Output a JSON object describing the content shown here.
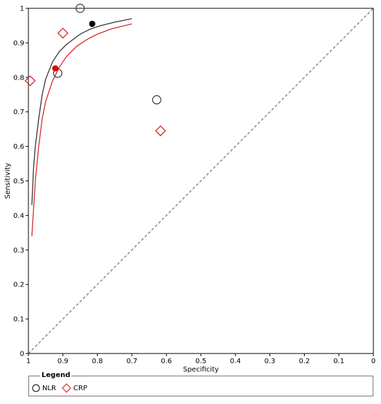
{
  "chart_data": {
    "type": "scatter",
    "xlabel": "Specificity",
    "ylabel": "Sensitivity",
    "xlim": [
      1,
      0
    ],
    "ylim": [
      0,
      1
    ],
    "x_ticks": [
      "1",
      "0.9",
      "0.8",
      "0.7",
      "0.6",
      "0.5",
      "0.4",
      "0.3",
      "0.2",
      "0.1",
      "0"
    ],
    "y_ticks": [
      "0",
      "0.1",
      "0.2",
      "0.3",
      "0.4",
      "0.5",
      "0.6",
      "0.7",
      "0.8",
      "0.9",
      "1"
    ],
    "reference_line": "diagonal",
    "series": [
      {
        "name": "NLR",
        "marker": "circle",
        "color": "#333333",
        "points": [
          {
            "specificity": 0.85,
            "sensitivity": 1.0
          },
          {
            "specificity": 0.915,
            "sensitivity": 0.812
          },
          {
            "specificity": 0.628,
            "sensitivity": 0.735
          }
        ],
        "summary_point": {
          "specificity": 0.815,
          "sensitivity": 0.955
        },
        "curve": [
          {
            "specificity": 0.99,
            "sensitivity": 0.43
          },
          {
            "specificity": 0.985,
            "sensitivity": 0.54
          },
          {
            "specificity": 0.98,
            "sensitivity": 0.6
          },
          {
            "specificity": 0.97,
            "sensitivity": 0.68
          },
          {
            "specificity": 0.96,
            "sensitivity": 0.75
          },
          {
            "specificity": 0.95,
            "sensitivity": 0.795
          },
          {
            "specificity": 0.93,
            "sensitivity": 0.845
          },
          {
            "specificity": 0.91,
            "sensitivity": 0.875
          },
          {
            "specificity": 0.89,
            "sensitivity": 0.895
          },
          {
            "specificity": 0.87,
            "sensitivity": 0.91
          },
          {
            "specificity": 0.85,
            "sensitivity": 0.925
          },
          {
            "specificity": 0.82,
            "sensitivity": 0.94
          },
          {
            "specificity": 0.79,
            "sensitivity": 0.95
          },
          {
            "specificity": 0.75,
            "sensitivity": 0.96
          },
          {
            "specificity": 0.7,
            "sensitivity": 0.97
          }
        ]
      },
      {
        "name": "CRP",
        "marker": "diamond",
        "color": "#d62728",
        "points": [
          {
            "specificity": 0.9,
            "sensitivity": 0.928
          },
          {
            "specificity": 0.995,
            "sensitivity": 0.79
          },
          {
            "specificity": 0.617,
            "sensitivity": 0.645
          }
        ],
        "summary_point": {
          "specificity": 0.922,
          "sensitivity": 0.826
        },
        "curve": [
          {
            "specificity": 0.99,
            "sensitivity": 0.34
          },
          {
            "specificity": 0.985,
            "sensitivity": 0.42
          },
          {
            "specificity": 0.98,
            "sensitivity": 0.5
          },
          {
            "specificity": 0.97,
            "sensitivity": 0.6
          },
          {
            "specificity": 0.96,
            "sensitivity": 0.68
          },
          {
            "specificity": 0.95,
            "sensitivity": 0.73
          },
          {
            "specificity": 0.93,
            "sensitivity": 0.79
          },
          {
            "specificity": 0.91,
            "sensitivity": 0.83
          },
          {
            "specificity": 0.89,
            "sensitivity": 0.86
          },
          {
            "specificity": 0.86,
            "sensitivity": 0.89
          },
          {
            "specificity": 0.83,
            "sensitivity": 0.91
          },
          {
            "specificity": 0.8,
            "sensitivity": 0.925
          },
          {
            "specificity": 0.76,
            "sensitivity": 0.94
          },
          {
            "specificity": 0.7,
            "sensitivity": 0.955
          }
        ]
      }
    ],
    "legend": {
      "title": "Legend",
      "position": "bottom"
    }
  }
}
